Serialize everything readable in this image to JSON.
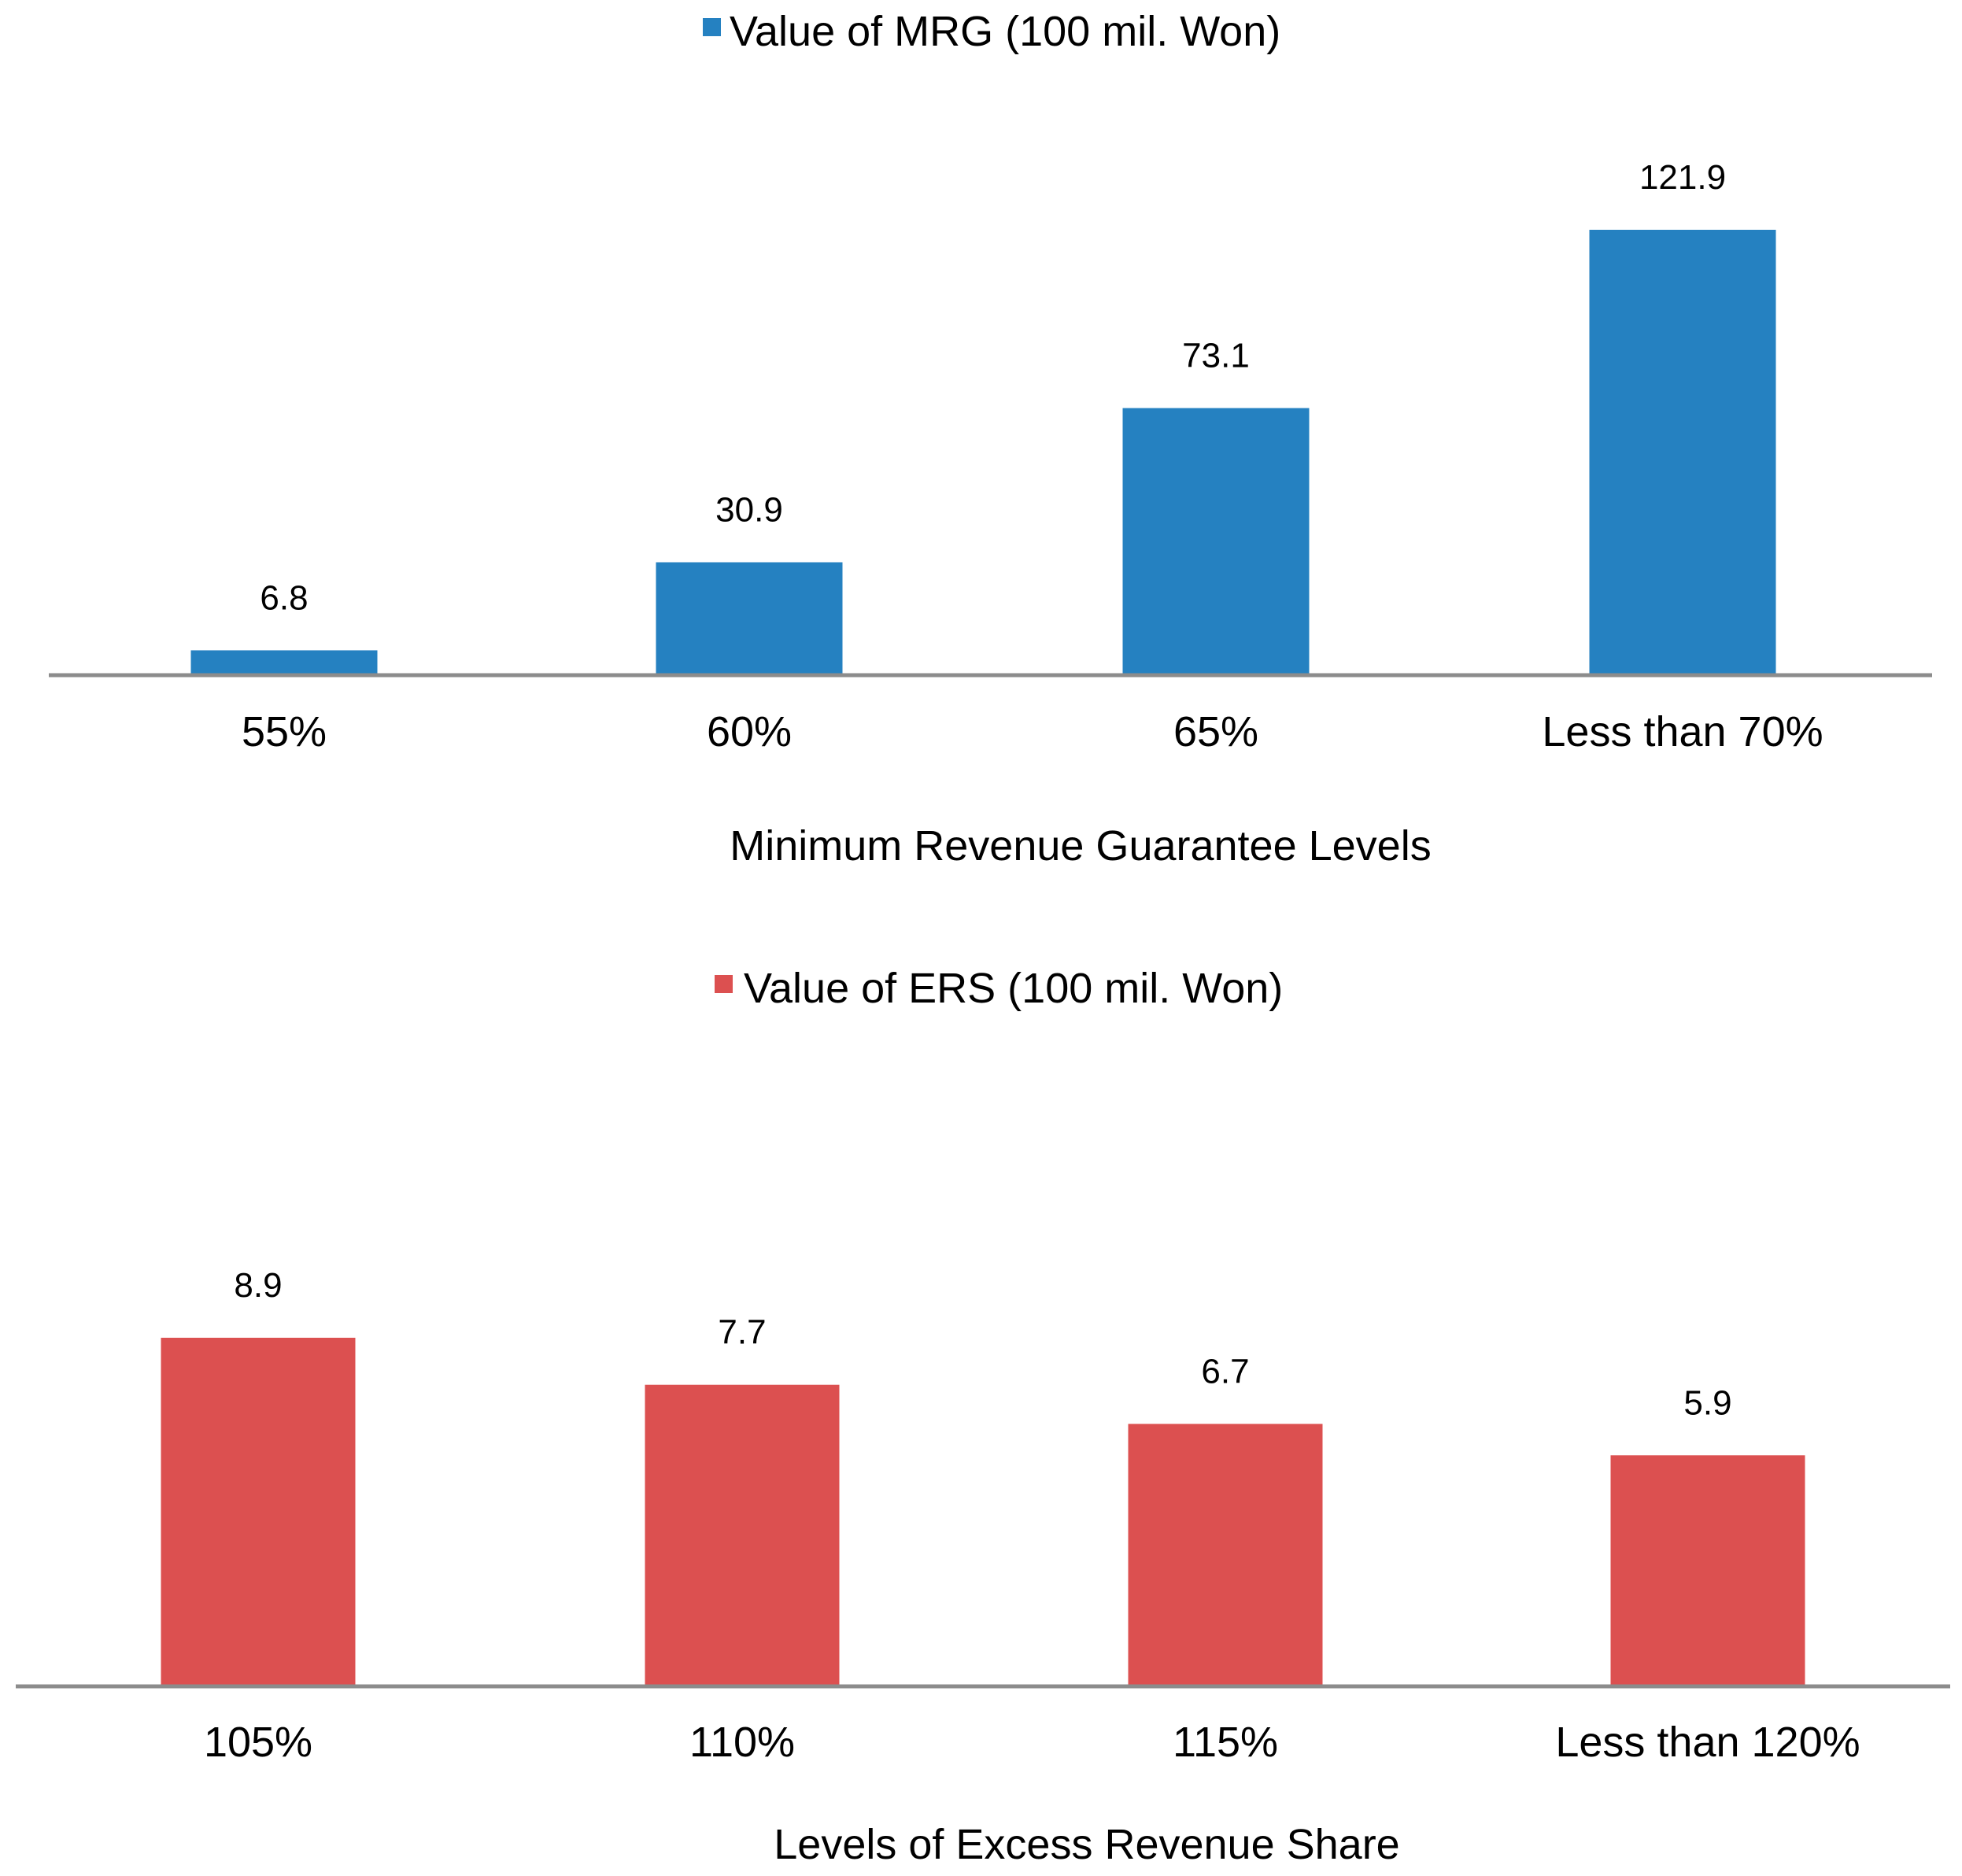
{
  "chart_data": [
    {
      "type": "bar",
      "legend": "Value of MRG (100 mil. Won)",
      "legend_position": "top-center",
      "color": "#2581C1",
      "categories": [
        "55%",
        "60%",
        "65%",
        "Less than 70%"
      ],
      "series": [
        {
          "name": "Value of MRG (100 mil. Won)",
          "values": [
            6.8,
            30.9,
            73.1,
            121.9
          ]
        }
      ],
      "data_labels": [
        "6.8",
        "30.9",
        "73.1",
        "121.9"
      ],
      "xlabel": "Minimum Revenue Guarantee Levels",
      "ylabel": "",
      "ylim": [
        0,
        121.9
      ],
      "grid": false
    },
    {
      "type": "bar",
      "legend": "Value of ERS (100 mil. Won)",
      "legend_position": "top-center",
      "color": "#DC5050",
      "categories": [
        "105%",
        "110%",
        "115%",
        "Less than 120%"
      ],
      "series": [
        {
          "name": "Value of ERS (100 mil. Won)",
          "values": [
            8.9,
            7.7,
            6.7,
            5.9
          ]
        }
      ],
      "data_labels": [
        "8.9",
        "7.7",
        "6.7",
        "5.9"
      ],
      "xlabel": "Levels of Excess Revenue Share",
      "ylabel": "",
      "ylim": [
        0,
        8.9
      ],
      "grid": false
    }
  ]
}
